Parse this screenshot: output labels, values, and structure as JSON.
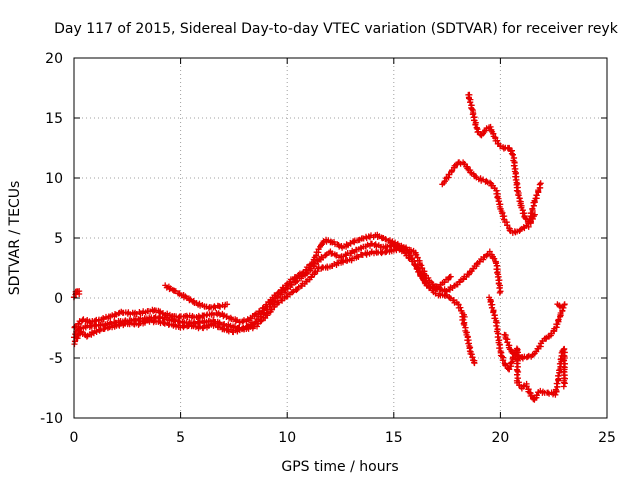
{
  "chart_data": {
    "type": "scatter",
    "title": "Day 117 of 2015, Sidereal Day-to-day VTEC variation (SDTVAR) for receiver reyk",
    "xlabel": "GPS time / hours",
    "ylabel": "SDTVAR / TECUs",
    "xlim": [
      0,
      25
    ],
    "ylim": [
      -10,
      20
    ],
    "xticks": [
      0,
      5,
      10,
      15,
      20,
      25
    ],
    "yticks": [
      -10,
      -5,
      0,
      5,
      10,
      15,
      20
    ],
    "grid": true,
    "marker": "plus",
    "color": "#e60000",
    "series": [
      {
        "points": [
          [
            0.0,
            -3.2
          ],
          [
            0.2,
            -2.6
          ],
          [
            0.5,
            -2.4
          ],
          [
            1.0,
            -2.3
          ],
          [
            1.5,
            -2.2
          ],
          [
            2.0,
            -2.0
          ],
          [
            2.5,
            -1.9
          ],
          [
            3.0,
            -1.8
          ],
          [
            3.5,
            -1.7
          ],
          [
            4.0,
            -1.6
          ],
          [
            4.5,
            -1.8
          ],
          [
            5.0,
            -2.0
          ],
          [
            5.5,
            -2.1
          ],
          [
            6.0,
            -2.0
          ],
          [
            6.5,
            -1.9
          ],
          [
            7.0,
            -2.2
          ],
          [
            7.5,
            -2.4
          ],
          [
            8.0,
            -2.6
          ],
          [
            8.5,
            -2.4
          ],
          [
            9.0,
            -1.5
          ],
          [
            9.5,
            -0.5
          ],
          [
            10.0,
            0.2
          ],
          [
            10.5,
            0.8
          ],
          [
            11.0,
            1.5
          ],
          [
            11.5,
            2.5
          ],
          [
            12.0,
            2.6
          ],
          [
            12.5,
            3.0
          ],
          [
            13.0,
            3.2
          ],
          [
            13.5,
            3.6
          ],
          [
            14.0,
            3.8
          ],
          [
            14.5,
            3.8
          ],
          [
            15.0,
            4.0
          ],
          [
            15.5,
            4.2
          ],
          [
            16.0,
            3.8
          ],
          [
            16.5,
            1.8
          ],
          [
            17.0,
            0.8
          ],
          [
            17.5,
            0.6
          ],
          [
            18.0,
            1.2
          ],
          [
            18.5,
            2.0
          ],
          [
            19.0,
            3.0
          ],
          [
            19.5,
            3.8
          ],
          [
            19.8,
            3.0
          ],
          [
            20.0,
            0.5
          ],
          [
            20.2,
            -3.0
          ],
          [
            20.5,
            -4.5
          ],
          [
            21.0,
            -5.0
          ],
          [
            21.5,
            -4.8
          ],
          [
            21.8,
            -4.2
          ],
          [
            22.0,
            -3.5
          ],
          [
            22.3,
            -3.2
          ],
          [
            22.6,
            -2.5
          ],
          [
            22.8,
            -1.5
          ],
          [
            23.0,
            -0.5
          ]
        ]
      },
      {
        "points": [
          [
            0.0,
            -3.8
          ],
          [
            0.3,
            -2.8
          ],
          [
            0.6,
            -3.2
          ],
          [
            1.0,
            -2.8
          ],
          [
            1.5,
            -2.5
          ],
          [
            2.0,
            -2.3
          ],
          [
            2.5,
            -2.1
          ],
          [
            3.0,
            -2.2
          ],
          [
            3.5,
            -1.9
          ],
          [
            4.0,
            -2.0
          ],
          [
            4.5,
            -2.2
          ],
          [
            5.0,
            -2.4
          ],
          [
            5.5,
            -2.3
          ],
          [
            6.0,
            -2.5
          ],
          [
            6.5,
            -2.2
          ],
          [
            7.0,
            -2.6
          ],
          [
            7.5,
            -2.8
          ],
          [
            8.0,
            -2.5
          ],
          [
            8.5,
            -2.0
          ],
          [
            9.0,
            -1.0
          ],
          [
            9.5,
            0.0
          ],
          [
            10.0,
            0.8
          ],
          [
            10.5,
            1.5
          ],
          [
            11.0,
            2.2
          ],
          [
            11.5,
            3.2
          ],
          [
            12.0,
            3.8
          ],
          [
            12.5,
            3.4
          ],
          [
            13.0,
            3.8
          ],
          [
            13.5,
            4.2
          ],
          [
            14.0,
            4.5
          ],
          [
            14.5,
            4.2
          ],
          [
            15.0,
            4.4
          ],
          [
            15.5,
            3.8
          ],
          [
            16.0,
            2.8
          ],
          [
            16.5,
            1.2
          ],
          [
            17.0,
            0.3
          ],
          [
            17.5,
            0.2
          ],
          [
            18.0,
            -0.5
          ],
          [
            18.3,
            -1.5
          ]
        ]
      },
      {
        "points": [
          [
            0.0,
            -2.5
          ],
          [
            0.4,
            -1.8
          ],
          [
            0.8,
            -2.0
          ],
          [
            1.2,
            -1.8
          ],
          [
            1.8,
            -1.5
          ],
          [
            2.2,
            -1.2
          ],
          [
            2.8,
            -1.3
          ],
          [
            3.2,
            -1.2
          ],
          [
            3.8,
            -1.0
          ],
          [
            4.2,
            -1.3
          ],
          [
            4.8,
            -1.6
          ],
          [
            5.2,
            -1.5
          ],
          [
            5.8,
            -1.6
          ],
          [
            6.2,
            -1.4
          ],
          [
            6.8,
            -1.3
          ],
          [
            7.2,
            -1.6
          ],
          [
            7.8,
            -2.0
          ],
          [
            8.2,
            -1.8
          ],
          [
            8.8,
            -1.0
          ],
          [
            9.2,
            -0.2
          ],
          [
            9.8,
            0.8
          ],
          [
            10.2,
            1.5
          ],
          [
            10.8,
            2.2
          ],
          [
            11.2,
            3.0
          ],
          [
            11.6,
            4.5
          ],
          [
            11.8,
            4.8
          ],
          [
            12.2,
            4.6
          ],
          [
            12.6,
            4.2
          ],
          [
            13.0,
            4.6
          ],
          [
            13.4,
            4.9
          ],
          [
            13.8,
            5.1
          ],
          [
            14.2,
            5.2
          ],
          [
            14.6,
            4.9
          ],
          [
            15.0,
            4.6
          ],
          [
            15.4,
            4.3
          ],
          [
            15.8,
            3.5
          ],
          [
            16.2,
            2.0
          ],
          [
            16.6,
            1.0
          ],
          [
            17.0,
            0.8
          ],
          [
            17.4,
            1.4
          ],
          [
            17.7,
            1.8
          ]
        ]
      },
      {
        "points": [
          [
            0.0,
            0.0
          ],
          [
            0.1,
            0.5
          ],
          [
            0.2,
            0.6
          ],
          [
            0.25,
            0.4
          ]
        ]
      },
      {
        "points": [
          [
            4.3,
            1.0
          ],
          [
            4.8,
            0.5
          ],
          [
            5.3,
            0.0
          ],
          [
            5.8,
            -0.5
          ],
          [
            6.3,
            -0.8
          ],
          [
            6.8,
            -0.7
          ],
          [
            7.2,
            -0.6
          ]
        ]
      },
      {
        "points": [
          [
            17.3,
            9.5
          ],
          [
            17.5,
            10.0
          ],
          [
            17.8,
            10.8
          ],
          [
            18.0,
            11.3
          ],
          [
            18.3,
            11.2
          ],
          [
            18.6,
            10.5
          ],
          [
            18.9,
            10.0
          ],
          [
            19.2,
            9.8
          ],
          [
            19.5,
            9.6
          ],
          [
            19.8,
            9.0
          ],
          [
            20.0,
            7.5
          ],
          [
            20.2,
            6.5
          ],
          [
            20.5,
            5.5
          ],
          [
            20.8,
            5.5
          ],
          [
            21.0,
            5.8
          ],
          [
            21.3,
            6.0
          ],
          [
            21.6,
            8.0
          ],
          [
            21.9,
            9.5
          ]
        ]
      },
      {
        "points": [
          [
            18.5,
            17.0
          ],
          [
            18.7,
            15.5
          ],
          [
            18.9,
            14.0
          ],
          [
            19.1,
            13.5
          ],
          [
            19.3,
            14.0
          ],
          [
            19.5,
            14.3
          ],
          [
            19.7,
            13.5
          ],
          [
            19.9,
            12.8
          ],
          [
            20.1,
            12.5
          ],
          [
            20.4,
            12.5
          ],
          [
            20.6,
            12.0
          ],
          [
            20.8,
            9.0
          ],
          [
            21.0,
            7.5
          ],
          [
            21.2,
            6.5
          ],
          [
            21.4,
            6.2
          ],
          [
            21.6,
            7.0
          ]
        ]
      },
      {
        "points": [
          [
            18.2,
            -1.5
          ],
          [
            18.4,
            -2.8
          ],
          [
            18.6,
            -4.5
          ],
          [
            18.8,
            -5.5
          ],
          [
            19.5,
            0.0
          ],
          [
            19.8,
            -2.0
          ],
          [
            20.0,
            -4.5
          ],
          [
            20.2,
            -5.5
          ],
          [
            20.4,
            -6.0
          ],
          [
            20.6,
            -5.0
          ],
          [
            20.8,
            -4.2
          ],
          [
            20.8,
            -7.0
          ],
          [
            21.0,
            -7.5
          ],
          [
            21.2,
            -7.2
          ],
          [
            21.4,
            -8.0
          ],
          [
            21.6,
            -8.5
          ],
          [
            21.8,
            -7.8
          ],
          [
            22.6,
            -8.0
          ],
          [
            22.7,
            -6.8
          ],
          [
            22.8,
            -5.8
          ],
          [
            22.9,
            -4.5
          ],
          [
            23.0,
            -4.2
          ],
          [
            23.0,
            -7.3
          ],
          [
            22.7,
            -0.5
          ],
          [
            22.8,
            -0.8
          ]
        ]
      }
    ]
  }
}
